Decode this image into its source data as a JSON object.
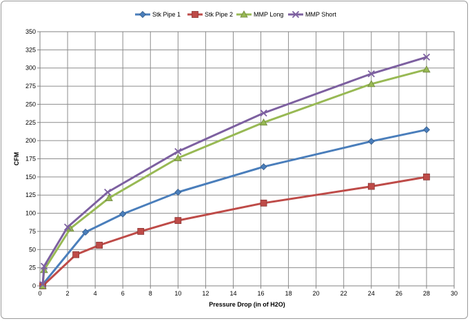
{
  "chart_data": {
    "type": "line",
    "title": "",
    "xlabel": "Pressure Drop (in of H2O)",
    "ylabel": "CFM",
    "xlim": [
      0,
      30
    ],
    "ylim": [
      0,
      350
    ],
    "x_ticks": [
      0,
      2,
      4,
      6,
      8,
      10,
      12,
      14,
      16,
      18,
      20,
      22,
      24,
      26,
      28,
      30
    ],
    "y_ticks": [
      0,
      25,
      50,
      75,
      100,
      125,
      150,
      175,
      200,
      225,
      250,
      275,
      300,
      325,
      350
    ],
    "x_tick_labels": [
      "0",
      "2",
      "4",
      "6",
      "8",
      "10",
      "12",
      "14",
      "16",
      "18",
      "20",
      "22",
      "24",
      "26",
      "28",
      "30"
    ],
    "y_tick_labels": [
      "0",
      "25",
      "50",
      "75",
      "100",
      "125",
      "150",
      "175",
      "200",
      "225",
      "250",
      "275",
      "300",
      "325",
      "350"
    ],
    "grid": true,
    "legend_position": "top",
    "series": [
      {
        "name": "Stk Pipe 1",
        "color": "#4a7ebb",
        "marker": "diamond",
        "points": [
          [
            0.2,
            2
          ],
          [
            3.3,
            74
          ],
          [
            6.0,
            99
          ],
          [
            10.0,
            129
          ],
          [
            16.2,
            164
          ],
          [
            24.0,
            199
          ],
          [
            28.0,
            215
          ]
        ]
      },
      {
        "name": "Stk Pipe 2",
        "color": "#be4b48",
        "marker": "square",
        "points": [
          [
            0.2,
            0
          ],
          [
            2.6,
            43
          ],
          [
            4.3,
            56
          ],
          [
            7.3,
            75
          ],
          [
            10.0,
            90
          ],
          [
            16.2,
            114
          ],
          [
            24.0,
            137
          ],
          [
            28.0,
            150
          ]
        ]
      },
      {
        "name": "MMP Long",
        "color": "#98b954",
        "marker": "triangle",
        "points": [
          [
            0.2,
            0
          ],
          [
            0.3,
            22
          ],
          [
            2.2,
            79
          ],
          [
            5.0,
            121
          ],
          [
            10.0,
            176
          ],
          [
            16.2,
            225
          ],
          [
            24.0,
            278
          ],
          [
            28.0,
            298
          ]
        ]
      },
      {
        "name": "MMP Short",
        "color": "#7d60a0",
        "marker": "x",
        "points": [
          [
            0.2,
            2
          ],
          [
            0.3,
            27
          ],
          [
            2.0,
            81
          ],
          [
            4.9,
            129
          ],
          [
            10.0,
            185
          ],
          [
            16.2,
            238
          ],
          [
            24.0,
            292
          ],
          [
            28.0,
            315
          ]
        ]
      }
    ]
  }
}
